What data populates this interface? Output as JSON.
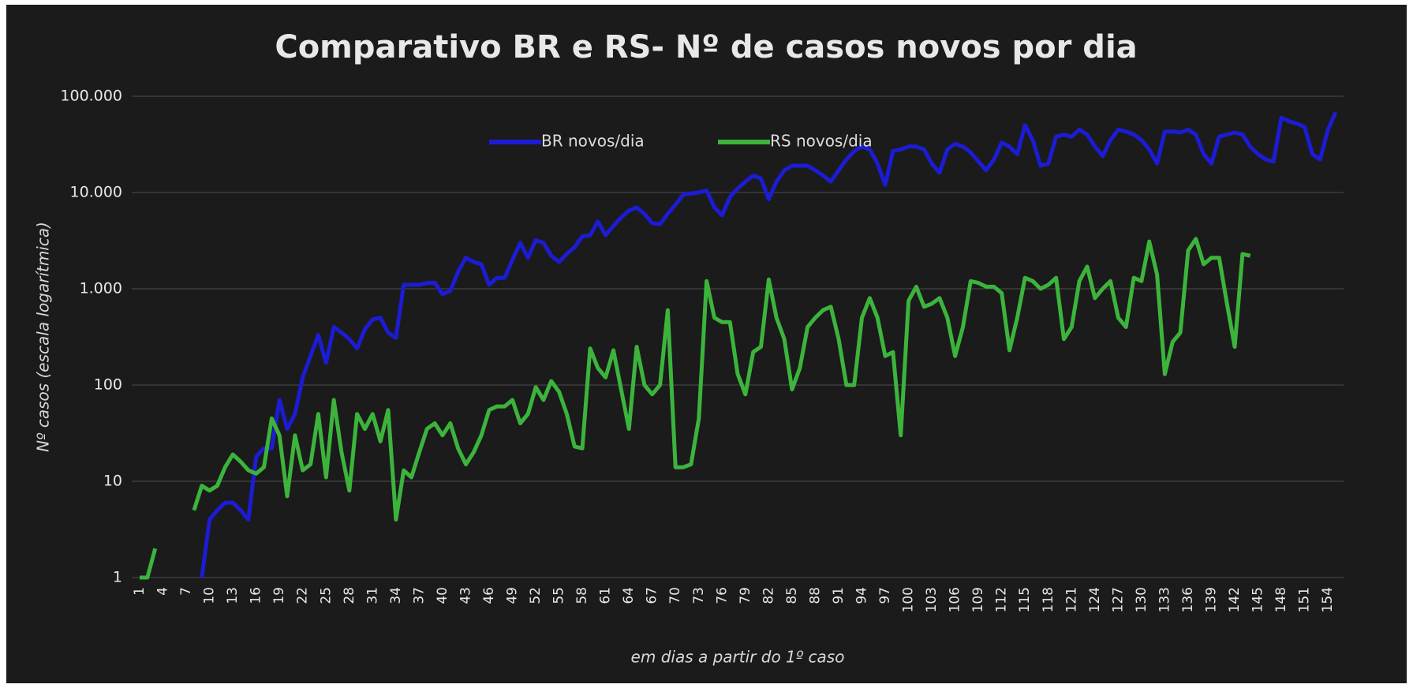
{
  "chart_data": {
    "type": "line",
    "title": "Comparativo BR e RS- Nº de casos novos por dia",
    "y_label": "Nº casos (escala logarítmica)",
    "x_label": "em dias a partir do 1º caso",
    "log_scale": true,
    "grid": true,
    "legend": "top",
    "ylim": [
      1,
      100000
    ],
    "yticks": [
      1,
      10,
      100,
      {
        "value": 1000,
        "label": "1.000"
      },
      {
        "value": 10000,
        "label": "10.000"
      },
      {
        "value": 100000,
        "label": "100.000"
      }
    ],
    "categories": [
      1,
      null,
      null,
      4,
      null,
      null,
      7,
      null,
      null,
      10,
      null,
      null,
      13,
      null,
      null,
      16,
      null,
      null,
      19,
      null,
      null,
      22,
      null,
      null,
      25,
      null,
      null,
      28,
      null,
      null,
      31,
      null,
      null,
      34,
      null,
      null,
      37,
      null,
      null,
      40,
      null,
      null,
      43,
      null,
      null,
      46,
      null,
      null,
      49,
      null,
      null,
      52,
      null,
      null,
      55,
      null,
      null,
      58,
      null,
      null,
      61,
      null,
      null,
      64,
      null,
      null,
      67,
      null,
      null,
      70,
      null,
      null,
      73,
      null,
      null,
      76,
      null,
      null,
      79,
      null,
      null,
      82,
      null,
      null,
      85,
      null,
      null,
      88,
      null,
      null,
      91,
      null,
      null,
      94,
      null,
      null,
      97,
      null,
      null,
      100,
      null,
      null,
      103,
      null,
      null,
      106,
      null,
      null,
      109,
      null,
      null,
      112,
      null,
      null,
      115,
      null,
      null,
      118,
      null,
      null,
      121,
      null,
      null,
      124,
      null,
      null,
      127,
      null,
      null,
      130,
      null,
      null,
      133,
      null,
      null,
      136,
      null,
      null,
      139,
      null,
      null,
      142,
      null,
      null,
      145,
      null,
      null,
      148,
      null,
      null,
      151,
      null,
      null,
      154,
      null
    ],
    "series": [
      {
        "name": "BR novos/dia",
        "color": "#1c1cd4",
        "values": [
          null,
          null,
          null,
          null,
          null,
          null,
          null,
          null,
          1,
          4,
          5,
          6,
          6,
          5,
          4,
          18,
          22,
          22,
          70,
          35,
          50,
          120,
          200,
          330,
          170,
          400,
          350,
          300,
          240,
          380,
          480,
          500,
          350,
          310,
          1100,
          1100,
          1100,
          1150,
          1150,
          880,
          950,
          1500,
          2100,
          1900,
          1800,
          1100,
          1300,
          1300,
          2000,
          3000,
          2100,
          3200,
          3000,
          2200,
          1900,
          2300,
          2700,
          3500,
          3600,
          5000,
          3600,
          4500,
          5500,
          6500,
          7000,
          6000,
          4800,
          4700,
          6000,
          7500,
          9500,
          9800,
          10000,
          10500,
          7000,
          5800,
          9000,
          11000,
          13000,
          15000,
          14000,
          8500,
          13000,
          17000,
          19000,
          19000,
          19000,
          17000,
          15000,
          13000,
          17000,
          22000,
          27000,
          30000,
          28000,
          20000,
          12000,
          27000,
          28000,
          30000,
          30000,
          28000,
          20000,
          16000,
          28000,
          32000,
          30000,
          26000,
          21000,
          17000,
          22000,
          33000,
          30000,
          25000,
          50000,
          35000,
          19000,
          20000,
          38000,
          40000,
          38000,
          45000,
          40000,
          30000,
          24000,
          35000,
          45000,
          43000,
          40000,
          35000,
          28000,
          20000,
          43000,
          43000,
          42000,
          45000,
          40000,
          25000,
          20000,
          38000,
          40000,
          42000,
          40000,
          30000,
          25000,
          22000,
          21000,
          60000,
          55000,
          52000,
          48000,
          25000,
          22000,
          45000,
          68000
        ]
      },
      {
        "name": "RS novos/dia",
        "color": "#3cb43c",
        "values": [
          1,
          1,
          2,
          null,
          null,
          null,
          null,
          5,
          9,
          8,
          9,
          14,
          19,
          16,
          13,
          12,
          14,
          45,
          30,
          7,
          30,
          13,
          15,
          50,
          11,
          70,
          20,
          8,
          50,
          35,
          50,
          26,
          55,
          4,
          13,
          11,
          20,
          35,
          40,
          30,
          40,
          22,
          15,
          20,
          30,
          55,
          60,
          60,
          70,
          40,
          50,
          95,
          70,
          110,
          85,
          50,
          23,
          22,
          240,
          150,
          120,
          230,
          90,
          35,
          250,
          100,
          80,
          100,
          600,
          14,
          14,
          15,
          45,
          1200,
          500,
          450,
          450,
          130,
          80,
          220,
          250,
          1250,
          500,
          300,
          90,
          150,
          400,
          500,
          600,
          650,
          300,
          100,
          100,
          500,
          800,
          500,
          200,
          220,
          30,
          750,
          1050,
          650,
          700,
          800,
          500,
          200,
          400,
          1200,
          1150,
          1050,
          1050,
          900,
          230,
          500,
          1300,
          1200,
          1000,
          1100,
          1300,
          300,
          400,
          1200,
          1700,
          800,
          1000,
          1200,
          500,
          400,
          1300,
          1200,
          3100,
          1400,
          130,
          280,
          350,
          2500,
          3300,
          1800,
          2100,
          2100,
          700,
          250,
          2300,
          2200,
          null,
          null,
          null,
          null,
          null,
          null,
          null,
          null,
          null,
          null,
          null
        ]
      }
    ]
  }
}
